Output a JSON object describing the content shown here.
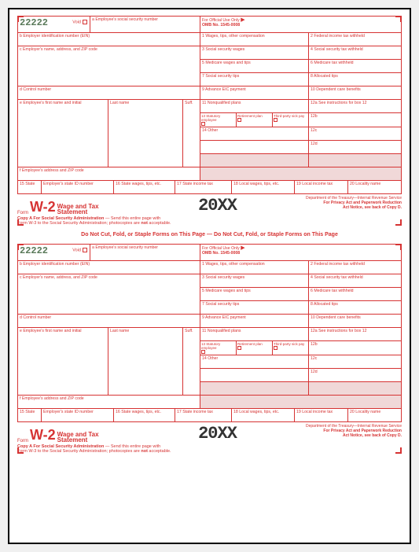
{
  "form": {
    "controlNum": "22222",
    "void": "Void",
    "boxA": "a  Employee's social security number",
    "official": "For Official Use Only",
    "omb": "OMB No. 1545-0008",
    "boxB": "b  Employer identification number (EIN)",
    "boxC": "c  Employer's name, address, and ZIP code",
    "boxD": "d  Control number",
    "boxE1": "e  Employee's first name and initial",
    "boxE2": "Last name",
    "boxESuff": "Suff.",
    "boxF": "f  Employee's address and ZIP code",
    "box1": "1  Wages, tips, other compensation",
    "box2": "2  Federal income tax withheld",
    "box3": "3  Social security wages",
    "box4": "4  Social security tax withheld",
    "box5": "5  Medicare wages and tips",
    "box6": "6  Medicare tax withheld",
    "box7": "7  Social security tips",
    "box8": "8  Allocated tips",
    "box9": "9  Advance EIC payment",
    "box10": "10  Dependent care benefits",
    "box11": "11  Nonqualified plans",
    "box12a": "12a  See instructions for box 12",
    "box12b": "12b",
    "box12c": "12c",
    "box12d": "12d",
    "box13": "13",
    "box13a": "Statutory employee",
    "box13b": "Retirement plan",
    "box13c": "Third-party sick pay",
    "box14": "14  Other",
    "box15a": "15  State",
    "box15b": "Employer's state ID number",
    "box16": "16  State wages, tips, etc.",
    "box17": "17  State income tax",
    "box18": "18  Local wages, tips, etc.",
    "box19": "19  Local income tax",
    "box20": "20  Locality name",
    "formWord": "Form",
    "formCode": "W-2",
    "formTitle1": "Wage and Tax",
    "formTitle2": "Statement",
    "year": "20XX",
    "dept": "Department of the Treasury—Internal Revenue Service",
    "privacy1": "For Privacy Act and Paperwork Reduction",
    "privacy2": "Act Notice, see back of Copy D.",
    "copyA": "Copy A  For Social Security Administration",
    "copyA2": " — Send this entire page with",
    "copyA3": "Form W-3 to the Social Security Administration; photocopies are ",
    "copyA4": "not",
    "copyA5": " acceptable.",
    "warn": "Do Not Cut, Fold, or Staple Forms on This Page — Do Not Cut, Fold, or Staple Forms on This Page"
  }
}
